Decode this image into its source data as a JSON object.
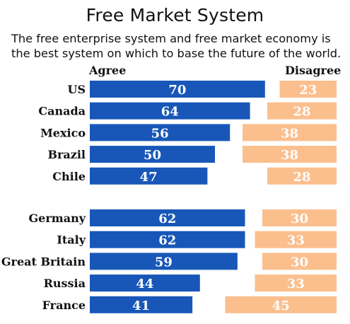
{
  "chart_data": {
    "type": "bar",
    "title": "Free Market System",
    "subtitle": "The free enterprise system and free market economy is the best system on which to base the future of the world.",
    "series": [
      {
        "name": "Agree",
        "values": [
          70,
          64,
          56,
          50,
          47,
          62,
          62,
          59,
          44,
          41
        ],
        "color": "#1857b8"
      },
      {
        "name": "Disagree",
        "values": [
          23,
          28,
          38,
          38,
          28,
          30,
          33,
          30,
          33,
          45
        ],
        "color": "#fbbf8d"
      }
    ],
    "categories": [
      "US",
      "Canada",
      "Mexico",
      "Brazil",
      "Chile",
      "Germany",
      "Italy",
      "Great Britain",
      "Russia",
      "France"
    ],
    "groups": [
      [
        "US",
        "Canada",
        "Mexico",
        "Brazil",
        "Chile"
      ],
      [
        "Germany",
        "Italy",
        "Great Britain",
        "Russia",
        "France"
      ]
    ],
    "agree_value_color": "#ffffff",
    "disagree_value_color": "#ffffff"
  }
}
